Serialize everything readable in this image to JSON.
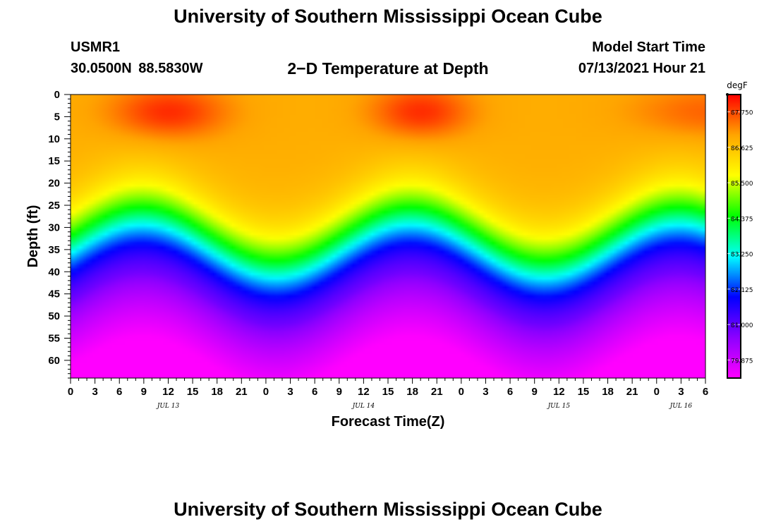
{
  "page": {
    "title_top": "University of Southern Mississippi Ocean Cube",
    "title_bottom": "University of Southern Mississippi Ocean Cube",
    "station_id": "USMR1",
    "station_coords": "30.0500N  88.5830W",
    "plot_title": "2−D Temperature at Depth",
    "start_label": "Model Start Time",
    "start_value": "07/13/2021 Hour 21"
  },
  "colors": {
    "colormap": [
      "#ff00ff",
      "#8c00ff",
      "#0000ff",
      "#00ffff",
      "#00ff00",
      "#ffff00",
      "#ffa500",
      "#ff0000"
    ],
    "axis": "#000000",
    "background": "#ffffff"
  },
  "chart_data": {
    "type": "heatmap",
    "title": "2−D Temperature at Depth",
    "xlabel": "Forecast Time(Z)",
    "ylabel": "Depth (ft)",
    "units": "degF",
    "x_range_hours_from_start": [
      0,
      78
    ],
    "x_ticks": [
      {
        "h": 0,
        "label": "0"
      },
      {
        "h": 3,
        "label": "3"
      },
      {
        "h": 6,
        "label": "6"
      },
      {
        "h": 9,
        "label": "9"
      },
      {
        "h": 12,
        "label": "12"
      },
      {
        "h": 15,
        "label": "15"
      },
      {
        "h": 18,
        "label": "18"
      },
      {
        "h": 21,
        "label": "21"
      },
      {
        "h": 24,
        "label": "0"
      },
      {
        "h": 27,
        "label": "3"
      },
      {
        "h": 30,
        "label": "6"
      },
      {
        "h": 33,
        "label": "9"
      },
      {
        "h": 36,
        "label": "12"
      },
      {
        "h": 39,
        "label": "15"
      },
      {
        "h": 42,
        "label": "18"
      },
      {
        "h": 45,
        "label": "21"
      },
      {
        "h": 48,
        "label": "0"
      },
      {
        "h": 51,
        "label": "3"
      },
      {
        "h": 54,
        "label": "6"
      },
      {
        "h": 57,
        "label": "9"
      },
      {
        "h": 60,
        "label": "12"
      },
      {
        "h": 63,
        "label": "15"
      },
      {
        "h": 66,
        "label": "18"
      },
      {
        "h": 69,
        "label": "21"
      },
      {
        "h": 72,
        "label": "0"
      },
      {
        "h": 75,
        "label": "3"
      },
      {
        "h": 78,
        "label": "6"
      }
    ],
    "date_labels": [
      {
        "h": 12,
        "label": "JUL 13"
      },
      {
        "h": 36,
        "label": "JUL 14"
      },
      {
        "h": 60,
        "label": "JUL 15"
      },
      {
        "h": 75,
        "label": "JUL 16"
      }
    ],
    "y_range_ft": [
      0,
      64
    ],
    "y_ticks": [
      0,
      5,
      10,
      15,
      20,
      25,
      30,
      35,
      40,
      45,
      50,
      55,
      60
    ],
    "colorbar": {
      "label": "degF",
      "range": [
        79.3,
        88.3
      ],
      "ticks": [
        "87.750",
        "86.625",
        "85.500",
        "84.375",
        "83.250",
        "82.125",
        "81.000",
        "79.875"
      ]
    },
    "thermocline": {
      "surface_max_degF": 87.8,
      "bottom_min_degF": 79.3,
      "boundary_depth_ft_min": 40,
      "boundary_depth_ft_max": 52,
      "shallow_at_hours": [
        7,
        70
      ],
      "deep_at_hours": [
        27,
        60
      ]
    },
    "grid": false
  }
}
